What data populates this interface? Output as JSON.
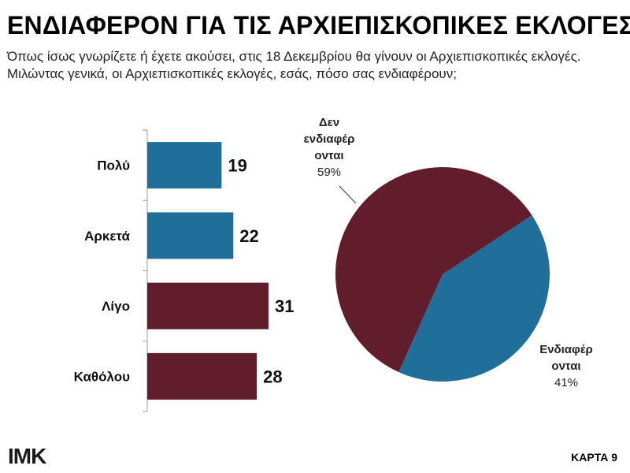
{
  "header": {
    "title": "ΕΝΔΙΑΦΕΡΟΝ ΓΙΑ ΤΙΣ ΑΡΧΙΕΠΙΣΚΟΠΙΚΕΣ ΕΚΛΟΓΕΣ",
    "subtitle": "Όπως ίσως γνωρίζετε ή έχετε ακούσει, στις 18 Δεκεμβρίου θα γίνουν οι Αρχιεπισκοπικές εκλογές. Μιλώντας γενικά, οι Αρχιεπισκοπικές εκλογές, εσάς, πόσο σας ενδιαφέρουν;"
  },
  "footer": {
    "logo_text": "ΙΜΚ",
    "card_label": "ΚΑΡΤΑ 9"
  },
  "chart_data": [
    {
      "type": "bar",
      "orientation": "horizontal",
      "categories": [
        "Πολύ",
        "Αρκετά",
        "Λίγο",
        "Καθόλου"
      ],
      "values": [
        19,
        22,
        31,
        28
      ],
      "bar_colors": [
        "#1f6f9a",
        "#1f6f9a",
        "#621d2d",
        "#621d2d"
      ],
      "xlim": [
        0,
        35
      ],
      "grid": false
    },
    {
      "type": "pie",
      "slices": [
        {
          "label": "Ενδιαφέρ ονται",
          "label_lines": [
            "Ενδιαφέρ",
            "ονται"
          ],
          "value": 41,
          "value_text": "41%",
          "color": "#1f6f9a"
        },
        {
          "label": "Δεν ενδιαφέρ ονται",
          "label_lines": [
            "Δεν",
            "ενδιαφέρ",
            "ονται"
          ],
          "value": 59,
          "value_text": "59%",
          "color": "#621d2d"
        }
      ]
    }
  ]
}
